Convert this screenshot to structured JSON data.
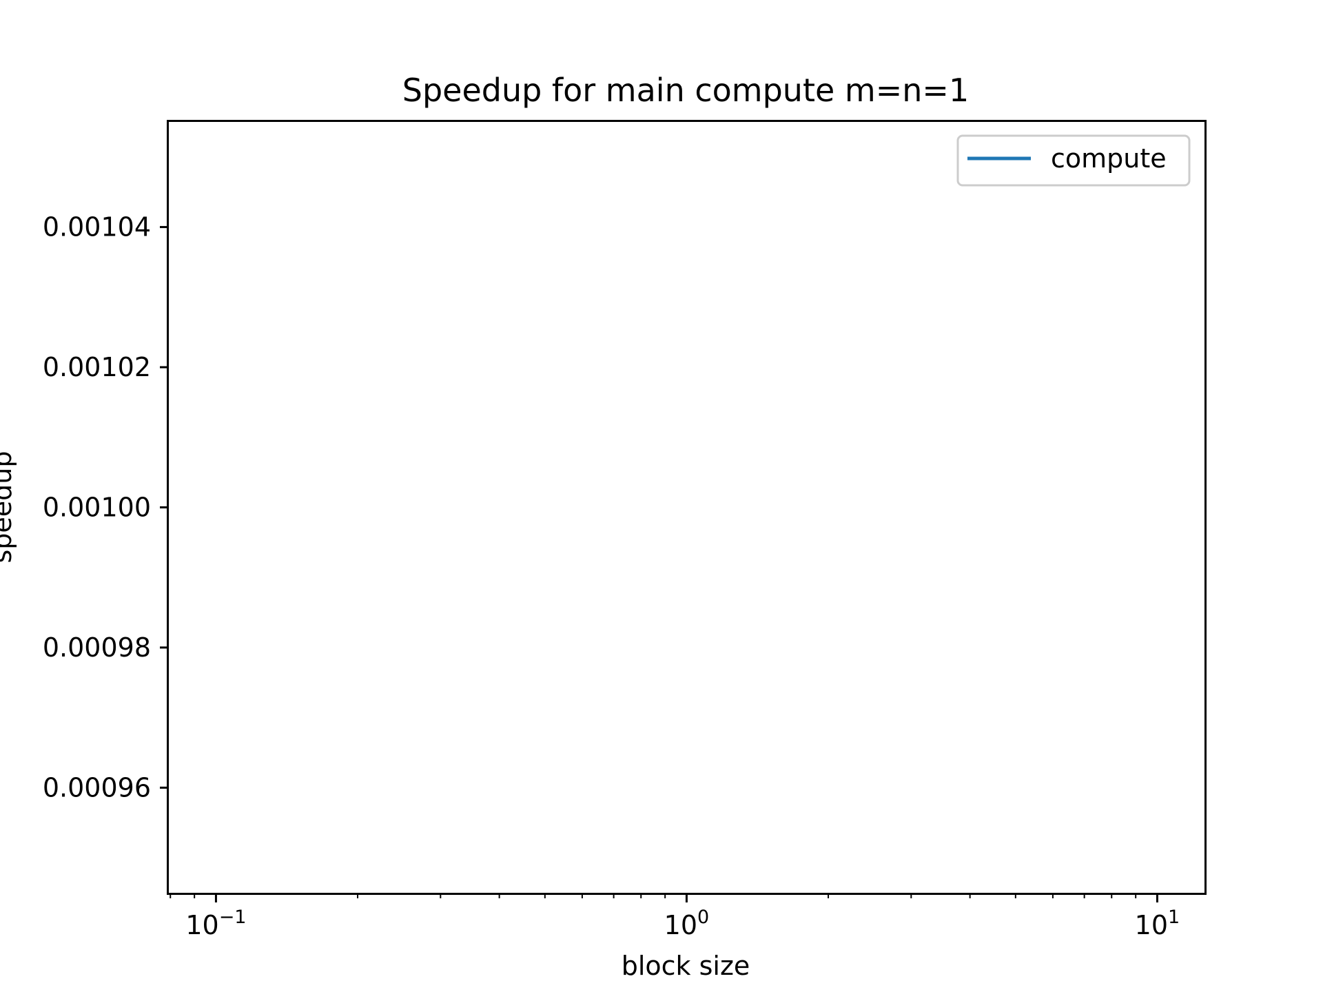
{
  "chart_data": {
    "type": "line",
    "title": "Speedup for main compute m=n=1",
    "xlabel": "block size",
    "ylabel": "speedup",
    "xscale": "log",
    "xlim": [
      0.0794,
      12.6
    ],
    "ylim": [
      0.000945,
      0.001055
    ],
    "x_ticks": [
      {
        "value": 0.1,
        "base": "10",
        "exp": "−1"
      },
      {
        "value": 1,
        "base": "10",
        "exp": "0"
      },
      {
        "value": 10,
        "base": "10",
        "exp": "1"
      }
    ],
    "y_ticks": [
      {
        "value": 0.00096,
        "label": "0.00096"
      },
      {
        "value": 0.00098,
        "label": "0.00098"
      },
      {
        "value": 0.001,
        "label": "0.00100"
      },
      {
        "value": 0.00102,
        "label": "0.00102"
      },
      {
        "value": 0.00104,
        "label": "0.00104"
      }
    ],
    "series": [
      {
        "name": "compute",
        "color": "#1f77b4",
        "x": [],
        "y": []
      }
    ],
    "legend": {
      "position": "top-right"
    },
    "grid": false
  }
}
